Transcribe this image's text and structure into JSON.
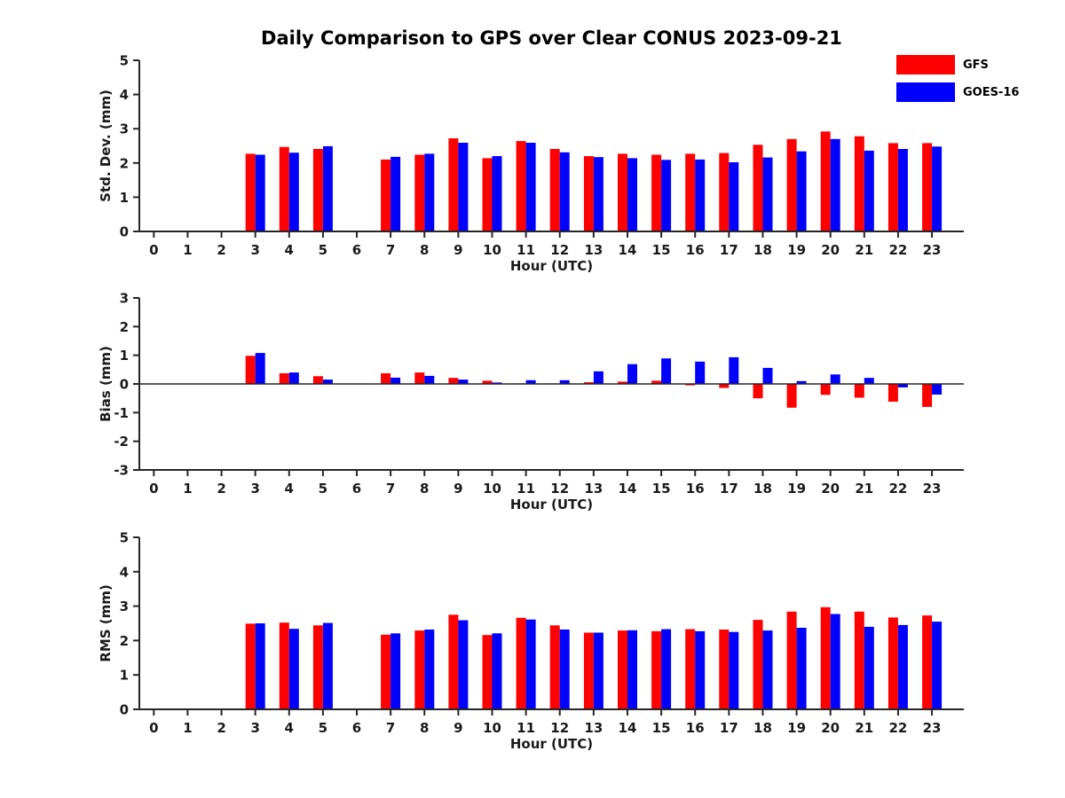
{
  "title": "Daily Comparison to GPS over Clear CONUS 2023-09-21",
  "legend": {
    "position": "top-right",
    "items": [
      {
        "label": "GFS",
        "color": "#ff0000"
      },
      {
        "label": "GOES-16",
        "color": "#0000ff"
      }
    ]
  },
  "chart_data": [
    {
      "name": "std-dev",
      "type": "bar",
      "title": "",
      "xlabel": "Hour (UTC)",
      "ylabel": "Std. Dev. (mm)",
      "ylim": [
        0,
        5
      ],
      "yticks": [
        0,
        1,
        2,
        3,
        4,
        5
      ],
      "grid": false,
      "zero_line": false,
      "categories": [
        "0",
        "1",
        "2",
        "3",
        "4",
        "5",
        "6",
        "7",
        "8",
        "9",
        "10",
        "11",
        "12",
        "13",
        "14",
        "15",
        "16",
        "17",
        "18",
        "19",
        "20",
        "21",
        "22",
        "23"
      ],
      "series": [
        {
          "name": "GFS",
          "color": "#ff0000",
          "values": [
            null,
            null,
            null,
            2.27,
            2.47,
            2.41,
            null,
            2.1,
            2.24,
            2.72,
            2.14,
            2.64,
            2.41,
            2.2,
            2.27,
            2.24,
            2.27,
            2.29,
            2.53,
            2.7,
            2.92,
            2.78,
            2.58,
            2.58
          ]
        },
        {
          "name": "GOES-16",
          "color": "#0000ff",
          "values": [
            null,
            null,
            null,
            2.24,
            2.3,
            2.49,
            null,
            2.18,
            2.27,
            2.59,
            2.2,
            2.59,
            2.31,
            2.17,
            2.14,
            2.09,
            2.1,
            2.02,
            2.16,
            2.34,
            2.7,
            2.36,
            2.41,
            2.48
          ]
        }
      ]
    },
    {
      "name": "bias",
      "type": "bar",
      "title": "",
      "xlabel": "Hour (UTC)",
      "ylabel": "Bias (mm)",
      "ylim": [
        -3,
        3
      ],
      "yticks": [
        -3,
        -2,
        -1,
        0,
        1,
        2,
        3
      ],
      "grid": false,
      "zero_line": true,
      "categories": [
        "0",
        "1",
        "2",
        "3",
        "4",
        "5",
        "6",
        "7",
        "8",
        "9",
        "10",
        "11",
        "12",
        "13",
        "14",
        "15",
        "16",
        "17",
        "18",
        "19",
        "20",
        "21",
        "22",
        "23"
      ],
      "series": [
        {
          "name": "GFS",
          "color": "#ff0000",
          "values": [
            null,
            null,
            null,
            0.98,
            0.37,
            0.27,
            null,
            0.37,
            0.4,
            0.21,
            0.11,
            0.02,
            0.02,
            0.06,
            0.08,
            0.11,
            -0.05,
            -0.14,
            -0.5,
            -0.83,
            -0.38,
            -0.48,
            -0.62,
            -0.8
          ]
        },
        {
          "name": "GOES-16",
          "color": "#0000ff",
          "values": [
            null,
            null,
            null,
            1.08,
            0.4,
            0.15,
            null,
            0.22,
            0.28,
            0.15,
            0.05,
            0.13,
            0.13,
            0.44,
            0.69,
            0.89,
            0.78,
            0.93,
            0.56,
            0.1,
            0.33,
            0.21,
            -0.12,
            -0.37
          ]
        }
      ]
    },
    {
      "name": "rms",
      "type": "bar",
      "title": "",
      "xlabel": "Hour (UTC)",
      "ylabel": "RMS (mm)",
      "ylim": [
        0,
        5
      ],
      "yticks": [
        0,
        1,
        2,
        3,
        4,
        5
      ],
      "grid": false,
      "zero_line": false,
      "categories": [
        "0",
        "1",
        "2",
        "3",
        "4",
        "5",
        "6",
        "7",
        "8",
        "9",
        "10",
        "11",
        "12",
        "13",
        "14",
        "15",
        "16",
        "17",
        "18",
        "19",
        "20",
        "21",
        "22",
        "23"
      ],
      "series": [
        {
          "name": "GFS",
          "color": "#ff0000",
          "values": [
            null,
            null,
            null,
            2.49,
            2.52,
            2.44,
            null,
            2.17,
            2.29,
            2.75,
            2.16,
            2.66,
            2.44,
            2.23,
            2.29,
            2.27,
            2.33,
            2.32,
            2.6,
            2.84,
            2.97,
            2.84,
            2.67,
            2.73
          ]
        },
        {
          "name": "GOES-16",
          "color": "#0000ff",
          "values": [
            null,
            null,
            null,
            2.5,
            2.34,
            2.51,
            null,
            2.21,
            2.32,
            2.59,
            2.21,
            2.61,
            2.32,
            2.23,
            2.3,
            2.33,
            2.27,
            2.25,
            2.29,
            2.37,
            2.77,
            2.4,
            2.45,
            2.55
          ]
        }
      ]
    }
  ]
}
